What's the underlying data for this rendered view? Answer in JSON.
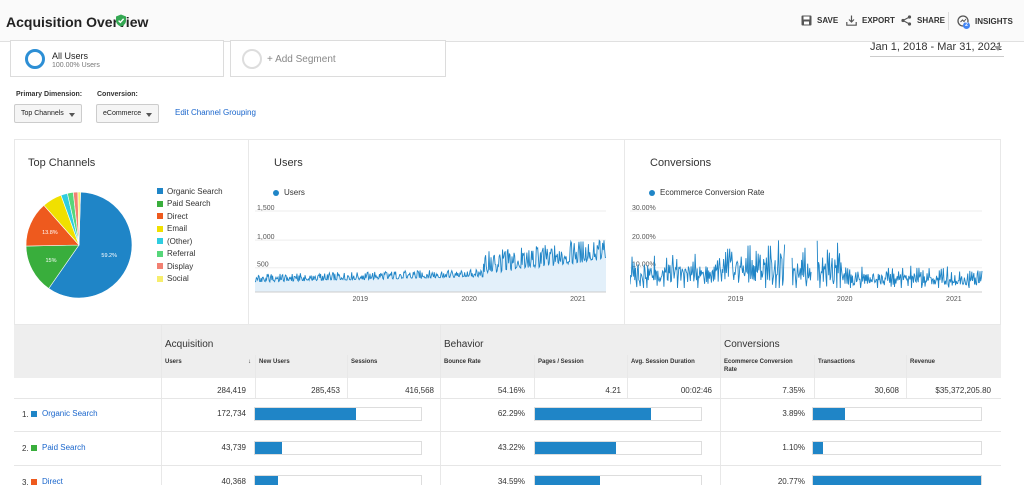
{
  "header": {
    "title": "Acquisition Overview",
    "actions": {
      "save": "SAVE",
      "export": "EXPORT",
      "share": "SHARE",
      "insights": "INSIGHTS"
    },
    "insights_badge": "2"
  },
  "segments": {
    "all_users": {
      "name": "All Users",
      "pct": "100.00% Users"
    },
    "add": "+ Add Segment"
  },
  "date_range": "Jan 1, 2018 - Mar 31, 2021",
  "controls": {
    "primary_dimension_label": "Primary Dimension:",
    "primary_dimension_value": "Top Channels",
    "conversion_label": "Conversion:",
    "conversion_value": "eCommerce",
    "edit_grouping": "Edit Channel Grouping"
  },
  "top_channels": {
    "title": "Top Channels",
    "legend": [
      {
        "name": "Organic Search",
        "color": "#1f85c7"
      },
      {
        "name": "Paid Search",
        "color": "#39ae3c"
      },
      {
        "name": "Direct",
        "color": "#ee5a1e"
      },
      {
        "name": "Email",
        "color": "#f0e000"
      },
      {
        "name": "(Other)",
        "color": "#2fcde0"
      },
      {
        "name": "Referral",
        "color": "#56d67a"
      },
      {
        "name": "Display",
        "color": "#f28072"
      },
      {
        "name": "Social",
        "color": "#f7ee6d"
      }
    ],
    "slices": [
      59.2,
      15.0,
      13.8,
      6.0,
      2.0,
      1.8,
      1.4,
      0.8
    ],
    "labels": {
      "organic": "59.2%",
      "paid": "15%",
      "direct": "13.8%"
    }
  },
  "users_chart": {
    "title": "Users",
    "series_name": "Users",
    "y_ticks": [
      "1,500",
      "1,000",
      "500"
    ],
    "x_ticks": [
      "2019",
      "2020",
      "2021"
    ]
  },
  "conv_chart": {
    "title": "Conversions",
    "series_name": "Ecommerce Conversion Rate",
    "y_ticks": [
      "30.00%",
      "20.00%",
      "10.00%"
    ],
    "x_ticks": [
      "2019",
      "2020",
      "2021"
    ]
  },
  "table": {
    "groups": {
      "acquisition": "Acquisition",
      "behavior": "Behavior",
      "conversions": "Conversions"
    },
    "columns": {
      "users": "Users",
      "new_users": "New Users",
      "sessions": "Sessions",
      "bounce_rate": "Bounce Rate",
      "pages_session": "Pages / Session",
      "avg_session_duration": "Avg. Session Duration",
      "conv_rate": "Ecommerce Conversion Rate",
      "transactions": "Transactions",
      "revenue": "Revenue"
    },
    "sort_indicator": "↓",
    "totals": {
      "users": "284,419",
      "new_users": "285,453",
      "sessions": "416,568",
      "bounce_rate": "54.16%",
      "pages_session": "4.21",
      "avg_session_duration": "00:02:46",
      "conv_rate": "7.35%",
      "transactions": "30,608",
      "revenue": "$35,372,205.80"
    },
    "rows": [
      {
        "num": "1",
        "channel": "Organic Search",
        "color": "#1f85c7",
        "users": "172,734",
        "bounce": "62.29%",
        "conv": "3.89%",
        "new_users_frac": 0.61,
        "pages_frac": 0.7,
        "transactions_frac": 0.19
      },
      {
        "num": "2",
        "channel": "Paid Search",
        "color": "#39ae3c",
        "users": "43,739",
        "bounce": "43.22%",
        "conv": "1.10%",
        "new_users_frac": 0.16,
        "pages_frac": 0.49,
        "transactions_frac": 0.06
      },
      {
        "num": "3",
        "channel": "Direct",
        "color": "#ee5a1e",
        "users": "40,368",
        "bounce": "34.59%",
        "conv": "20.77%",
        "new_users_frac": 0.14,
        "pages_frac": 0.39,
        "transactions_frac": 1.0
      }
    ]
  }
}
